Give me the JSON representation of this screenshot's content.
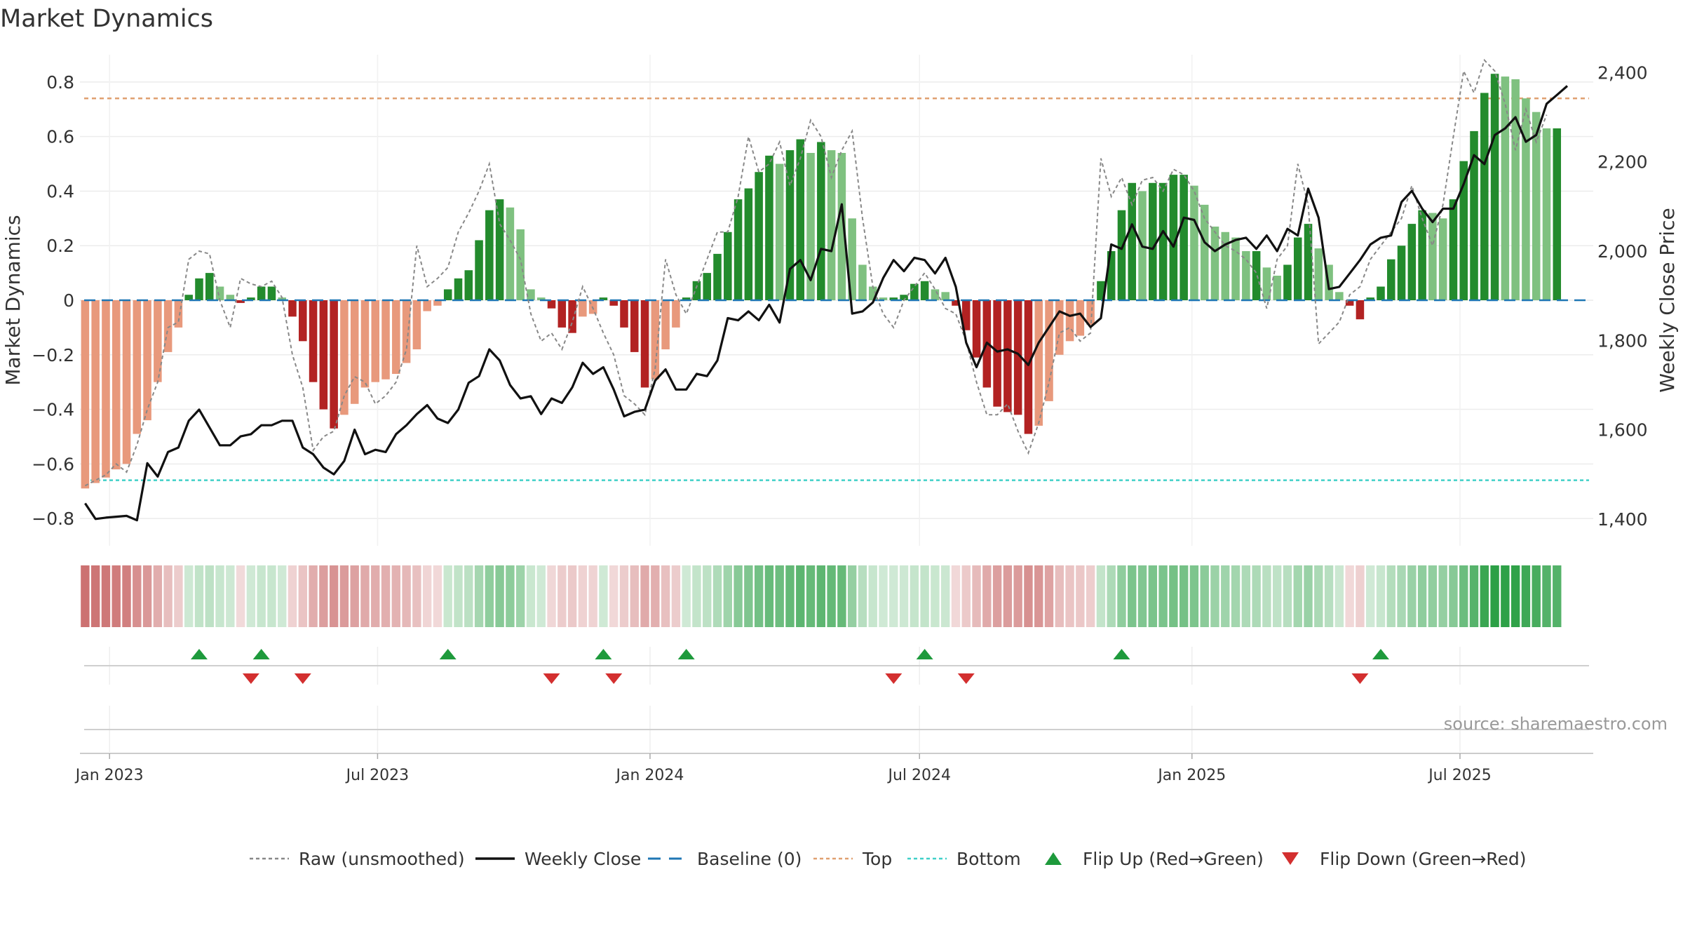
{
  "chart_data": {
    "type": "bar",
    "title": "Market Dynamics",
    "ylabel": "Market Dynamics",
    "y2label": "Weekly Close Price",
    "ylim": [
      -0.9,
      0.9
    ],
    "y2lim": [
      1340,
      2440
    ],
    "yticks": [
      -0.8,
      -0.6,
      -0.4,
      -0.2,
      0,
      0.2,
      0.4,
      0.6,
      0.8
    ],
    "yticklabels": [
      "−0.8",
      "−0.6",
      "−0.4",
      "−0.2",
      "0",
      "0.2",
      "0.4",
      "0.6",
      "0.8"
    ],
    "y2ticks": [
      1400,
      1600,
      1800,
      2000,
      2200,
      2400
    ],
    "y2ticklabels": [
      "1,400",
      "1,600",
      "1,800",
      "2,000",
      "2,200",
      "2,400"
    ],
    "xlim": [
      "2022-12-12",
      "2025-09-29"
    ],
    "xticks": [
      "2023-01-01",
      "2023-07-01",
      "2024-01-01",
      "2024-07-01",
      "2025-01-01",
      "2025-07-01"
    ],
    "xticklabels": [
      "Jan 2023",
      "Jul 2023",
      "Jan 2024",
      "Jul 2024",
      "Jan 2025",
      "Jul 2025"
    ],
    "first_week": "2022-12-12",
    "top": 0.74,
    "bottom": -0.66,
    "grid": true,
    "legend_position": "bottom",
    "dynamics": [
      -0.69,
      -0.67,
      -0.65,
      -0.62,
      -0.6,
      -0.49,
      -0.44,
      -0.3,
      -0.19,
      -0.1,
      0.02,
      0.08,
      0.1,
      0.05,
      0.02,
      -0.01,
      0.01,
      0.05,
      0.05,
      0.01,
      -0.06,
      -0.15,
      -0.3,
      -0.4,
      -0.47,
      -0.42,
      -0.38,
      -0.32,
      -0.3,
      -0.29,
      -0.27,
      -0.23,
      -0.18,
      -0.04,
      -0.02,
      0.04,
      0.08,
      0.11,
      0.22,
      0.33,
      0.37,
      0.34,
      0.26,
      0.04,
      0.01,
      -0.03,
      -0.1,
      -0.12,
      -0.06,
      -0.05,
      0.01,
      -0.02,
      -0.1,
      -0.19,
      -0.32,
      -0.29,
      -0.18,
      -0.1,
      0.01,
      0.07,
      0.1,
      0.17,
      0.25,
      0.37,
      0.41,
      0.47,
      0.53,
      0.5,
      0.55,
      0.59,
      0.54,
      0.58,
      0.55,
      0.54,
      0.3,
      0.13,
      0.05,
      0.01,
      0.01,
      0.02,
      0.06,
      0.07,
      0.04,
      0.03,
      -0.02,
      -0.11,
      -0.21,
      -0.32,
      -0.39,
      -0.41,
      -0.42,
      -0.49,
      -0.46,
      -0.37,
      -0.2,
      -0.15,
      -0.13,
      -0.09,
      0.07,
      0.18,
      0.33,
      0.43,
      0.4,
      0.43,
      0.43,
      0.46,
      0.46,
      0.42,
      0.35,
      0.27,
      0.25,
      0.23,
      0.18,
      0.18,
      0.12,
      0.09,
      0.13,
      0.23,
      0.28,
      0.19,
      0.13,
      0.03,
      -0.02,
      -0.07,
      0.01,
      0.05,
      0.15,
      0.2,
      0.28,
      0.33,
      0.32,
      0.3,
      0.37,
      0.51,
      0.62,
      0.76,
      0.83,
      0.82,
      0.81,
      0.74,
      0.69,
      0.63,
      0.63
    ],
    "raw": [
      -0.68,
      -0.66,
      -0.64,
      -0.6,
      -0.63,
      -0.53,
      -0.4,
      -0.3,
      -0.1,
      -0.08,
      0.15,
      0.18,
      0.17,
      0,
      -0.1,
      0.08,
      0.06,
      0.05,
      0.07,
      0.01,
      -0.2,
      -0.32,
      -0.55,
      -0.5,
      -0.48,
      -0.35,
      -0.28,
      -0.3,
      -0.38,
      -0.35,
      -0.3,
      -0.18,
      0.2,
      0.05,
      0.08,
      0.12,
      0.25,
      0.32,
      0.4,
      0.5,
      0.28,
      0.22,
      0.15,
      -0.05,
      -0.15,
      -0.12,
      -0.18,
      -0.08,
      0.05,
      -0.03,
      -0.12,
      -0.2,
      -0.35,
      -0.38,
      -0.42,
      -0.25,
      0.15,
      0.02,
      -0.05,
      0.05,
      0.15,
      0.25,
      0.25,
      0.38,
      0.6,
      0.47,
      0.5,
      0.58,
      0.42,
      0.52,
      0.66,
      0.6,
      0.45,
      0.55,
      0.62,
      0.3,
      0.05,
      -0.05,
      -0.1,
      0,
      0.05,
      0.1,
      0.04,
      -0.03,
      -0.05,
      -0.15,
      -0.3,
      -0.42,
      -0.42,
      -0.38,
      -0.48,
      -0.56,
      -0.45,
      -0.3,
      -0.12,
      -0.1,
      -0.15,
      -0.12,
      0.52,
      0.38,
      0.45,
      0.35,
      0.44,
      0.45,
      0.4,
      0.48,
      0.46,
      0.4,
      0.3,
      0.25,
      0.2,
      0.18,
      0.15,
      0.1,
      -0.03,
      0.15,
      0.2,
      0.5,
      0.35,
      -0.16,
      -0.12,
      -0.08,
      0.02,
      0.05,
      0.15,
      0.2,
      0.25,
      0.3,
      0.42,
      0.3,
      0.2,
      0.35,
      0.6,
      0.84,
      0.76,
      0.88,
      0.84,
      0.72,
      0.55,
      0.7,
      0.58,
      0.68
    ],
    "close": [
      1435,
      1400,
      1403,
      1405,
      1407,
      1397,
      1525,
      1495,
      1550,
      1560,
      1620,
      1645,
      1605,
      1565,
      1565,
      1585,
      1590,
      1610,
      1610,
      1620,
      1620,
      1560,
      1545,
      1515,
      1500,
      1530,
      1600,
      1545,
      1555,
      1550,
      1590,
      1610,
      1635,
      1655,
      1625,
      1615,
      1645,
      1705,
      1720,
      1780,
      1755,
      1700,
      1670,
      1675,
      1635,
      1670,
      1660,
      1695,
      1750,
      1725,
      1740,
      1690,
      1630,
      1640,
      1645,
      1710,
      1735,
      1690,
      1690,
      1725,
      1720,
      1755,
      1850,
      1845,
      1865,
      1845,
      1880,
      1840,
      1960,
      1980,
      1935,
      2005,
      2000,
      2105,
      1860,
      1865,
      1885,
      1940,
      1980,
      1955,
      1985,
      1980,
      1950,
      1985,
      1920,
      1795,
      1740,
      1795,
      1775,
      1780,
      1770,
      1745,
      1795,
      1830,
      1865,
      1855,
      1860,
      1830,
      1850,
      2015,
      2005,
      2060,
      2010,
      2005,
      2045,
      2010,
      2075,
      2070,
      2020,
      2000,
      2015,
      2025,
      2030,
      2005,
      2035,
      2000,
      2050,
      2035,
      2140,
      2075,
      1915,
      1920,
      1950,
      1980,
      2015,
      2030,
      2035,
      2110,
      2135,
      2095,
      2065,
      2095,
      2095,
      2150,
      2215,
      2195,
      2260,
      2275,
      2300,
      2245,
      2260,
      2330,
      2350,
      2370
    ],
    "flip_up_weeks": [
      11,
      17,
      35,
      50,
      58,
      81,
      100,
      125
    ],
    "flip_down_weeks": [
      16,
      21,
      45,
      51,
      78,
      85,
      123
    ],
    "regime_palette": {
      "strong_up": "#238b2d",
      "weak_up": "#7fc180",
      "strong_down": "#b22222",
      "weak_down": "#e8997c"
    },
    "line_colors": {
      "raw": "#888888",
      "close": "#111111",
      "baseline": "#1f77b4",
      "top": "#e0a070",
      "bottom": "#40d0c8",
      "flip_up": "#1e9a3c",
      "flip_down": "#d32f2f"
    },
    "legend": [
      {
        "key": "raw",
        "label": "Raw (unsmoothed)"
      },
      {
        "key": "close",
        "label": "Weekly Close"
      },
      {
        "key": "baseline",
        "label": "Baseline (0)"
      },
      {
        "key": "top",
        "label": "Top"
      },
      {
        "key": "bottom",
        "label": "Bottom"
      },
      {
        "key": "flip_up",
        "label": "Flip Up (Red→Green)"
      },
      {
        "key": "flip_down",
        "label": "Flip Down (Green→Red)"
      }
    ],
    "source": "source: sharemaestro.com"
  }
}
